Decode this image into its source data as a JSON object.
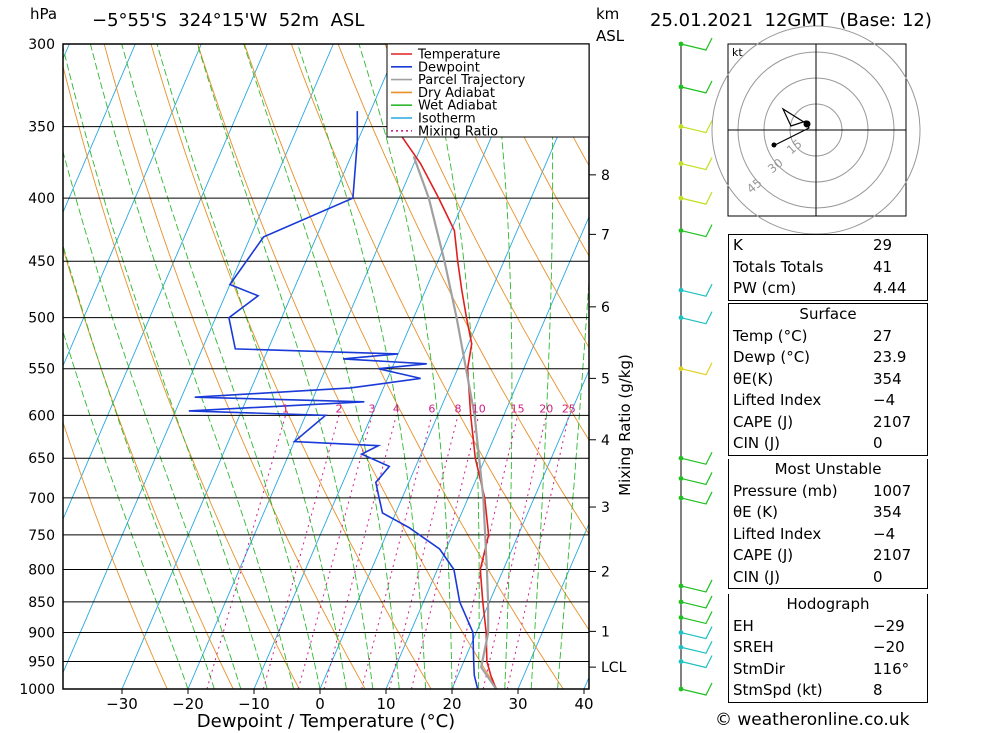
{
  "header": {
    "pressure_unit": "hPa",
    "location": "−5°55'S  324°15'W  52m  ASL",
    "height_unit_top": "km",
    "height_unit_bottom": "ASL",
    "datetime": "25.01.2021  12GMT  (Base: 12)"
  },
  "chart_data": {
    "type": "line",
    "title": "Skew-T log-P diagram",
    "xlabel": "Dewpoint / Temperature (°C)",
    "ylabel": "hPa",
    "right_label": "Mixing Ratio (g/kg)",
    "pressure_ticks": [
      300,
      350,
      400,
      450,
      500,
      550,
      600,
      650,
      700,
      750,
      800,
      850,
      900,
      950,
      1000
    ],
    "temp_ticks": [
      -30,
      -20,
      -10,
      0,
      10,
      20,
      30,
      40
    ],
    "height_ticks_km": [
      {
        "label": "8",
        "p": 383
      },
      {
        "label": "7",
        "p": 428
      },
      {
        "label": "6",
        "p": 490
      },
      {
        "label": "5",
        "p": 560
      },
      {
        "label": "4",
        "p": 628
      },
      {
        "label": "3",
        "p": 712
      },
      {
        "label": "2",
        "p": 803
      },
      {
        "label": "1",
        "p": 898
      },
      {
        "label": "LCL",
        "p": 960
      }
    ],
    "mixing_ratio_labels": [
      "1",
      "2",
      "3",
      "4",
      "6",
      "8",
      "10",
      "15",
      "20",
      "25"
    ],
    "legend": [
      "Temperature",
      "Dewpoint",
      "Parcel Trajectory",
      "Dry Adiabat",
      "Wet Adiabat",
      "Isotherm",
      "Mixing Ratio"
    ],
    "series": [
      {
        "name": "Temperature",
        "color": "#e02020",
        "points": [
          [
            1000,
            26.7
          ],
          [
            975,
            25
          ],
          [
            950,
            23.5
          ],
          [
            925,
            22.5
          ],
          [
            900,
            21.5
          ],
          [
            850,
            19
          ],
          [
            800,
            16.5
          ],
          [
            750,
            15.5
          ],
          [
            700,
            12.5
          ],
          [
            650,
            8.5
          ],
          [
            600,
            5
          ],
          [
            550,
            1.5
          ],
          [
            525,
            0.5
          ],
          [
            500,
            -2
          ],
          [
            475,
            -4.5
          ],
          [
            450,
            -7
          ],
          [
            425,
            -9.5
          ],
          [
            400,
            -14
          ],
          [
            375,
            -19
          ],
          [
            355,
            -24
          ]
        ]
      },
      {
        "name": "Dewpoint",
        "color": "#1a3ad8",
        "points": [
          [
            1000,
            23.9
          ],
          [
            975,
            22.5
          ],
          [
            950,
            21.5
          ],
          [
            925,
            20.5
          ],
          [
            900,
            19.5
          ],
          [
            850,
            15.5
          ],
          [
            800,
            12.5
          ],
          [
            770,
            9
          ],
          [
            740,
            3
          ],
          [
            720,
            -2
          ],
          [
            700,
            -3.5
          ],
          [
            680,
            -5
          ],
          [
            660,
            -4
          ],
          [
            645,
            -9
          ],
          [
            635,
            -7
          ],
          [
            630,
            -20
          ],
          [
            600,
            -17
          ],
          [
            595,
            -38
          ],
          [
            585,
            -12
          ],
          [
            580,
            -38
          ],
          [
            570,
            -15
          ],
          [
            560,
            -5
          ],
          [
            550,
            -12
          ],
          [
            545,
            -5
          ],
          [
            540,
            -18
          ],
          [
            535,
            -10
          ],
          [
            530,
            -35
          ],
          [
            500,
            -38
          ],
          [
            480,
            -35
          ],
          [
            470,
            -40
          ],
          [
            430,
            -38
          ],
          [
            400,
            -27
          ],
          [
            360,
            -30
          ],
          [
            340,
            -32
          ]
        ]
      },
      {
        "name": "Parcel Trajectory",
        "color": "#a0a0a0",
        "points": [
          [
            1000,
            26.7
          ],
          [
            960,
            23
          ],
          [
            900,
            21.8
          ],
          [
            850,
            19.8
          ],
          [
            800,
            17.5
          ],
          [
            700,
            12.3
          ],
          [
            600,
            5.6
          ],
          [
            500,
            -3.5
          ],
          [
            450,
            -9
          ],
          [
            400,
            -15.5
          ],
          [
            370,
            -20.5
          ]
        ]
      }
    ],
    "wind_barbs": [
      {
        "p": 1000,
        "color": "#20c020"
      },
      {
        "p": 950,
        "color": "#20c0c0"
      },
      {
        "p": 925,
        "color": "#20c0c0"
      },
      {
        "p": 900,
        "color": "#20c0c0"
      },
      {
        "p": 875,
        "color": "#20c020"
      },
      {
        "p": 850,
        "color": "#20c020"
      },
      {
        "p": 825,
        "color": "#20c020"
      },
      {
        "p": 700,
        "color": "#20c020"
      },
      {
        "p": 675,
        "color": "#20c020"
      },
      {
        "p": 650,
        "color": "#20c020"
      },
      {
        "p": 550,
        "color": "#e0d020"
      },
      {
        "p": 500,
        "color": "#20c0c0"
      },
      {
        "p": 475,
        "color": "#20c0c0"
      },
      {
        "p": 425,
        "color": "#20c020"
      },
      {
        "p": 400,
        "color": "#c0e020"
      },
      {
        "p": 375,
        "color": "#c0e020"
      },
      {
        "p": 350,
        "color": "#c0e020"
      },
      {
        "p": 325,
        "color": "#20c020"
      },
      {
        "p": 300,
        "color": "#20c020"
      }
    ]
  },
  "hodograph": {
    "unit": "kt",
    "rings": [
      "15",
      "30",
      "45"
    ]
  },
  "indices": {
    "rows": [
      {
        "label": "K",
        "value": "29"
      },
      {
        "label": "Totals Totals",
        "value": "41"
      },
      {
        "label": "PW (cm)",
        "value": "4.44"
      }
    ]
  },
  "surface": {
    "title": "Surface",
    "rows": [
      {
        "label": "Temp (°C)",
        "value": "27"
      },
      {
        "label": "Dewp (°C)",
        "value": "23.9"
      },
      {
        "label": "θE(K)",
        "value": "354"
      },
      {
        "label": "Lifted Index",
        "value": "−4"
      },
      {
        "label": "CAPE (J)",
        "value": "2107"
      },
      {
        "label": "CIN (J)",
        "value": "0"
      }
    ]
  },
  "most_unstable": {
    "title": "Most Unstable",
    "rows": [
      {
        "label": "Pressure (mb)",
        "value": "1007"
      },
      {
        "label": "θE (K)",
        "value": "354"
      },
      {
        "label": "Lifted Index",
        "value": "−4"
      },
      {
        "label": "CAPE (J)",
        "value": "2107"
      },
      {
        "label": "CIN (J)",
        "value": "0"
      }
    ]
  },
  "hodograph_table": {
    "title": "Hodograph",
    "rows": [
      {
        "label": "EH",
        "value": "−29"
      },
      {
        "label": "SREH",
        "value": "−20"
      },
      {
        "label": "StmDir",
        "value": "116°"
      },
      {
        "label": "StmSpd (kt)",
        "value": "8"
      }
    ]
  },
  "footer": {
    "copyright": "© weatheronline.co.uk"
  }
}
